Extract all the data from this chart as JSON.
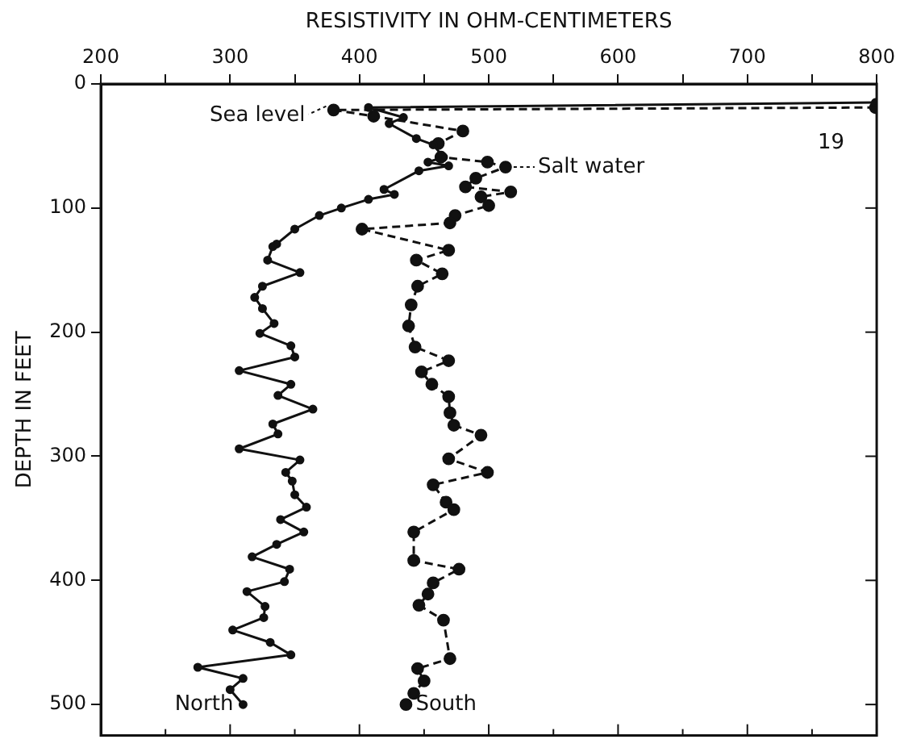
{
  "chart_data": {
    "type": "line",
    "xlabel": "RESISTIVITY IN OHM-CENTIMETERS",
    "ylabel": "DEPTH IN FEET",
    "xlim": [
      200,
      800
    ],
    "xticks": [
      200,
      {
        "value": 250,
        "label": null
      },
      300,
      {
        "value": 350,
        "label": null
      },
      400,
      {
        "value": 450,
        "label": null
      },
      500,
      {
        "value": 550,
        "label": null
      },
      600,
      {
        "value": 650,
        "label": null
      },
      700,
      {
        "value": 750,
        "label": null
      },
      800
    ],
    "ylim": [
      525,
      0
    ],
    "yticks": [
      0,
      100,
      200,
      300,
      400,
      500
    ],
    "grid": false,
    "legend": false,
    "marker": "circle",
    "annotations": [
      {
        "text": "Sea level",
        "x": 378,
        "y": 18
      },
      {
        "text": "Salt water",
        "x": 513,
        "y": 67
      },
      "19"
    ],
    "series": [
      {
        "name": "North",
        "color": "#111111",
        "line_style": "solid",
        "x": [
          799,
          407,
          434,
          423,
          444,
          457,
          465,
          453,
          469,
          446,
          419,
          427,
          407,
          386,
          369,
          350,
          336,
          333,
          329,
          354,
          325,
          319,
          325,
          334,
          323,
          347,
          350,
          307,
          347,
          337,
          364,
          333,
          337,
          307,
          354,
          343,
          348,
          350,
          359,
          339,
          357,
          336,
          317,
          346,
          342,
          313,
          327,
          326,
          302,
          331,
          347,
          275,
          310,
          300,
          310
        ],
        "values": [
          15,
          19,
          27,
          32,
          44,
          49,
          59,
          63,
          66,
          70,
          85,
          89,
          93,
          100,
          106,
          117,
          129,
          131,
          142,
          152,
          163,
          172,
          181,
          193,
          201,
          211,
          220,
          231,
          242,
          251,
          262,
          274,
          282,
          294,
          303,
          313,
          320,
          331,
          341,
          351,
          361,
          371,
          381,
          391,
          401,
          409,
          421,
          430,
          440,
          450,
          460,
          470,
          479,
          488,
          500
        ]
      },
      {
        "name": "South",
        "color": "#111111",
        "line_style": "dashed",
        "x": [
          799,
          380,
          411,
          480,
          461,
          463,
          499,
          513,
          490,
          482,
          517,
          494,
          500,
          474,
          470,
          402,
          469,
          444,
          464,
          445,
          440,
          438,
          443,
          469,
          448,
          456,
          469,
          470,
          473,
          494,
          469,
          499,
          457,
          467,
          473,
          442,
          442,
          477,
          457,
          453,
          446,
          465,
          470,
          445,
          450,
          442,
          436
        ],
        "values": [
          19,
          21,
          26,
          38,
          48,
          59,
          63,
          67,
          76,
          83,
          87,
          91,
          98,
          106,
          112,
          117,
          134,
          142,
          153,
          163,
          178,
          195,
          212,
          223,
          232,
          242,
          252,
          265,
          275,
          283,
          302,
          313,
          323,
          337,
          343,
          361,
          384,
          391,
          402,
          411,
          420,
          432,
          463,
          471,
          481,
          491,
          500
        ]
      }
    ]
  }
}
